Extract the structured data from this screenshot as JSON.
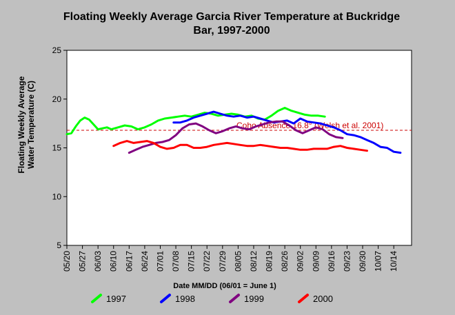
{
  "chart_data": {
    "type": "line",
    "title_lines": [
      "Floating Weekly Average Garcia River Temperature at Buckridge",
      "Bar, 1997-2000"
    ],
    "ylabel_lines": [
      "Floating Weekly Average",
      "Water Temperature (C)"
    ],
    "xlabel": "Date MM/DD (06/01 = June 1)",
    "ylim": [
      5,
      25
    ],
    "yticks": [
      "5",
      "10",
      "15",
      "20",
      "25"
    ],
    "xlim_days": [
      0,
      155
    ],
    "xticks": [
      "05/20",
      "05/27",
      "06/03",
      "06/10",
      "06/17",
      "06/24",
      "07/01",
      "07/08",
      "07/15",
      "07/22",
      "07/29",
      "08/05",
      "08/12",
      "08/19",
      "08/26",
      "09/02",
      "09/09",
      "09/16",
      "09/23",
      "09/30",
      "10/07",
      "10/14"
    ],
    "grid": false,
    "reference_line": {
      "y": 16.8,
      "label": "Coho Absence 16.8° (Welsh et al. 2001)",
      "color": "#cc0000"
    },
    "series": [
      {
        "name": "1997",
        "color": "#00ff00",
        "x": [
          "05/20",
          "05/22",
          "05/24",
          "05/26",
          "05/28",
          "05/30",
          "06/01",
          "06/03",
          "06/05",
          "06/07",
          "06/09",
          "06/12",
          "06/15",
          "06/18",
          "06/21",
          "06/24",
          "06/27",
          "06/30",
          "07/03",
          "07/06",
          "07/09",
          "07/12",
          "07/15",
          "07/18",
          "07/21",
          "07/24",
          "07/27",
          "07/30",
          "08/02",
          "08/05",
          "08/08",
          "08/11",
          "08/14",
          "08/17",
          "08/20",
          "08/23",
          "08/26",
          "08/29",
          "09/01",
          "09/04",
          "09/07",
          "09/10",
          "09/13"
        ],
        "values": [
          16.4,
          16.5,
          17.2,
          17.8,
          18.1,
          17.9,
          17.4,
          16.9,
          17.0,
          17.1,
          16.9,
          17.1,
          17.3,
          17.2,
          16.9,
          17.1,
          17.4,
          17.8,
          18.0,
          18.1,
          18.2,
          18.3,
          18.2,
          18.4,
          18.6,
          18.5,
          18.3,
          18.4,
          18.5,
          18.4,
          18.2,
          18.3,
          18.0,
          17.9,
          18.3,
          18.8,
          19.1,
          18.8,
          18.6,
          18.4,
          18.3,
          18.3,
          18.2
        ]
      },
      {
        "name": "1998",
        "color": "#0000ff",
        "x": [
          "07/07",
          "07/10",
          "07/13",
          "07/16",
          "07/19",
          "07/22",
          "07/25",
          "07/28",
          "07/31",
          "08/03",
          "08/06",
          "08/09",
          "08/12",
          "08/15",
          "08/18",
          "08/21",
          "08/24",
          "08/27",
          "08/30",
          "09/02",
          "09/05",
          "09/08",
          "09/11",
          "09/14",
          "09/17",
          "09/20",
          "09/23",
          "09/26",
          "09/29",
          "10/02",
          "10/05",
          "10/08",
          "10/11",
          "10/14",
          "10/17"
        ],
        "values": [
          17.6,
          17.6,
          17.8,
          18.1,
          18.3,
          18.5,
          18.7,
          18.5,
          18.3,
          18.2,
          18.3,
          18.1,
          18.2,
          18.0,
          17.8,
          17.6,
          17.7,
          17.8,
          17.5,
          18.0,
          17.7,
          17.6,
          17.5,
          17.3,
          17.1,
          16.8,
          16.4,
          16.3,
          16.1,
          15.8,
          15.5,
          15.1,
          15.0,
          14.6,
          14.5
        ]
      },
      {
        "name": "1999",
        "color": "#800080",
        "x": [
          "06/17",
          "06/20",
          "06/23",
          "06/26",
          "06/29",
          "07/02",
          "07/05",
          "07/08",
          "07/11",
          "07/14",
          "07/17",
          "07/20",
          "07/23",
          "07/26",
          "07/29",
          "08/01",
          "08/04",
          "08/07",
          "08/10",
          "08/13",
          "08/16",
          "08/19",
          "08/22",
          "08/25",
          "08/28",
          "08/31",
          "09/03",
          "09/06",
          "09/09",
          "09/12",
          "09/15",
          "09/18",
          "09/21"
        ],
        "values": [
          14.5,
          14.8,
          15.1,
          15.3,
          15.5,
          15.6,
          15.8,
          16.3,
          17.0,
          17.4,
          17.5,
          17.2,
          16.8,
          16.5,
          16.7,
          17.0,
          17.2,
          17.0,
          16.9,
          17.2,
          17.4,
          17.6,
          17.7,
          17.7,
          17.3,
          16.8,
          16.5,
          16.8,
          17.1,
          16.9,
          16.4,
          16.1,
          16.0
        ]
      },
      {
        "name": "2000",
        "color": "#ff0000",
        "x": [
          "06/10",
          "06/13",
          "06/16",
          "06/19",
          "06/22",
          "06/25",
          "06/28",
          "07/01",
          "07/04",
          "07/07",
          "07/10",
          "07/13",
          "07/16",
          "07/19",
          "07/22",
          "07/25",
          "07/28",
          "07/31",
          "08/03",
          "08/06",
          "08/09",
          "08/12",
          "08/15",
          "08/18",
          "08/21",
          "08/24",
          "08/27",
          "08/30",
          "09/02",
          "09/05",
          "09/08",
          "09/11",
          "09/14",
          "09/17",
          "09/20",
          "09/23",
          "09/26",
          "09/29",
          "10/02"
        ],
        "values": [
          15.2,
          15.5,
          15.7,
          15.5,
          15.6,
          15.7,
          15.5,
          15.1,
          14.9,
          15.0,
          15.3,
          15.3,
          15.0,
          15.0,
          15.1,
          15.3,
          15.4,
          15.5,
          15.4,
          15.3,
          15.2,
          15.2,
          15.3,
          15.2,
          15.1,
          15.0,
          15.0,
          14.9,
          14.8,
          14.8,
          14.9,
          14.9,
          14.9,
          15.1,
          15.2,
          15.0,
          14.9,
          14.8,
          14.7
        ]
      }
    ]
  }
}
